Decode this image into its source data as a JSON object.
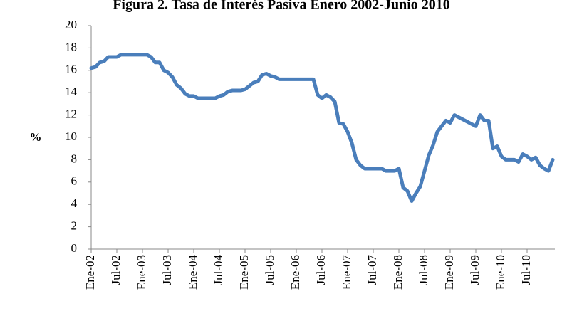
{
  "chart_data": {
    "type": "line",
    "title": "Figura 2. Tasa de Interés Pasiva Enero 2002-Junio 2010",
    "ylabel": "%",
    "categories": [
      "Ene-02",
      null,
      null,
      null,
      null,
      null,
      "Jul-02",
      null,
      null,
      null,
      null,
      null,
      "Ene-03",
      null,
      null,
      null,
      null,
      null,
      "Jul-03",
      null,
      null,
      null,
      null,
      null,
      "Ene-04",
      null,
      null,
      null,
      null,
      null,
      "Jul-04",
      null,
      null,
      null,
      null,
      null,
      "Ene-05",
      null,
      null,
      null,
      null,
      null,
      "Jul-05",
      null,
      null,
      null,
      null,
      null,
      "Ene-06",
      null,
      null,
      null,
      null,
      null,
      "Jul-06",
      null,
      null,
      null,
      null,
      null,
      "Ene-07",
      null,
      null,
      null,
      null,
      null,
      "Jul-07",
      null,
      null,
      null,
      null,
      null,
      "Ene-08",
      null,
      null,
      null,
      null,
      null,
      "Jul-08",
      null,
      null,
      null,
      null,
      null,
      "Ene-09",
      null,
      null,
      null,
      null,
      null,
      "Jul-09",
      null,
      null,
      null,
      null,
      null,
      "Ene-10",
      null,
      null,
      null,
      null,
      null,
      "Jul-10",
      null,
      null,
      null,
      null,
      null,
      null
    ],
    "series": [
      {
        "color": "#4a7ebb",
        "values": [
          16.2,
          16.3,
          16.7,
          16.8,
          17.2,
          17.2,
          17.2,
          17.4,
          17.4,
          17.4,
          17.4,
          17.4,
          17.4,
          17.4,
          17.2,
          16.7,
          16.7,
          16.0,
          15.8,
          15.4,
          14.7,
          14.4,
          13.9,
          13.7,
          13.7,
          13.5,
          13.5,
          13.5,
          13.5,
          13.5,
          13.7,
          13.8,
          14.1,
          14.2,
          14.2,
          14.2,
          14.3,
          14.6,
          14.9,
          15.0,
          15.6,
          15.7,
          15.5,
          15.4,
          15.2,
          15.2,
          15.2,
          15.2,
          15.2,
          15.2,
          15.2,
          15.2,
          15.2,
          13.8,
          13.5,
          13.8,
          13.6,
          13.2,
          11.3,
          11.2,
          10.5,
          9.5,
          8.0,
          7.5,
          7.2,
          7.2,
          7.2,
          7.2,
          7.2,
          7.0,
          7.0,
          7.0,
          7.2,
          5.5,
          5.2,
          4.3,
          5.0,
          5.6,
          7.0,
          8.4,
          9.3,
          10.5,
          11.0,
          11.5,
          11.3,
          12.0,
          11.8,
          11.6,
          11.4,
          11.2,
          11.0,
          12.0,
          11.5,
          11.5,
          9.0,
          9.2,
          8.3,
          8.0,
          8.0,
          8.0,
          7.8,
          8.5,
          8.3,
          8.0,
          8.2,
          7.5,
          7.2,
          7.0,
          8.0
        ]
      }
    ],
    "ylim": [
      0,
      20
    ],
    "yticks": [
      0,
      2,
      4,
      6,
      8,
      10,
      12,
      14,
      16,
      18,
      20
    ],
    "grid": false
  }
}
